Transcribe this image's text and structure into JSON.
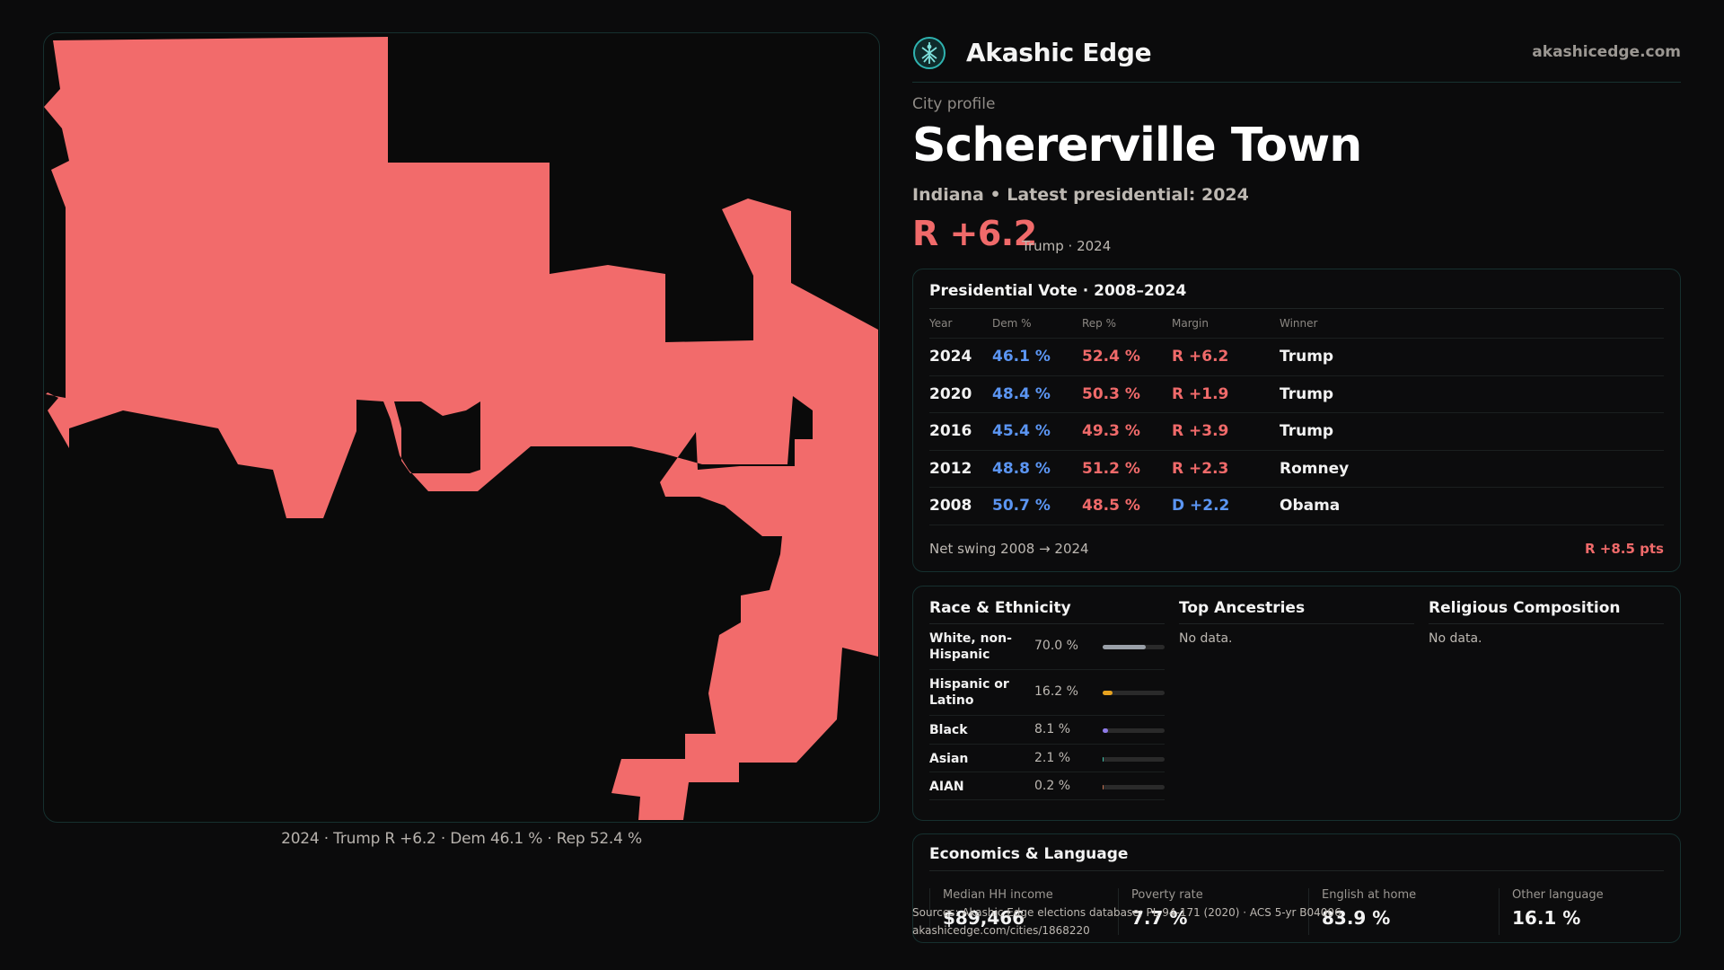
{
  "brand": {
    "name": "Akashic Edge",
    "url": "akashicedge.com"
  },
  "profile": {
    "kicker": "City profile",
    "city": "Schererville Town",
    "subtitle": "Indiana • Latest presidential: 2024",
    "margin": "R +6.2",
    "margin_sub": "Trump · 2024"
  },
  "map": {
    "caption": "2024 · Trump R +6.2 · Dem 46.1 % · Rep 52.4 %",
    "fill_color": "#f26b6b"
  },
  "presidential": {
    "title": "Presidential Vote · 2008–2024",
    "headers": {
      "year": "Year",
      "dem": "Dem %",
      "rep": "Rep %",
      "margin": "Margin",
      "winner": "Winner"
    },
    "rows": [
      {
        "year": "2024",
        "dem": "46.1 %",
        "rep": "52.4 %",
        "margin": "R +6.2",
        "party": "R",
        "winner": "Trump"
      },
      {
        "year": "2020",
        "dem": "48.4 %",
        "rep": "50.3 %",
        "margin": "R +1.9",
        "party": "R",
        "winner": "Trump"
      },
      {
        "year": "2016",
        "dem": "45.4 %",
        "rep": "49.3 %",
        "margin": "R +3.9",
        "party": "R",
        "winner": "Trump"
      },
      {
        "year": "2012",
        "dem": "48.8 %",
        "rep": "51.2 %",
        "margin": "R +2.3",
        "party": "R",
        "winner": "Romney"
      },
      {
        "year": "2008",
        "dem": "50.7 %",
        "rep": "48.5 %",
        "margin": "D +2.2",
        "party": "D",
        "winner": "Obama"
      }
    ],
    "swing_label": "Net swing 2008 → 2024",
    "swing_value": "R +8.5 pts"
  },
  "race": {
    "title": "Race & Ethnicity",
    "rows": [
      {
        "label": "White, non-Hispanic",
        "pct": "70.0 %",
        "value": 0.7,
        "color": "#9aa0a8"
      },
      {
        "label": "Hispanic or Latino",
        "pct": "16.2 %",
        "value": 0.162,
        "color": "#e6a21f"
      },
      {
        "label": "Black",
        "pct": "8.1 %",
        "value": 0.081,
        "color": "#8f7be8"
      },
      {
        "label": "Asian",
        "pct": "2.1 %",
        "value": 0.021,
        "color": "#3fbfa8"
      },
      {
        "label": "AIAN",
        "pct": "0.2 %",
        "value": 0.002,
        "color": "#c07050"
      }
    ]
  },
  "ancestries": {
    "title": "Top Ancestries",
    "nodata": "No data."
  },
  "religion": {
    "title": "Religious Composition",
    "nodata": "No data."
  },
  "economics": {
    "title": "Economics & Language",
    "items": [
      {
        "label": "Median HH income",
        "value": "$89,466"
      },
      {
        "label": "Poverty rate",
        "value": "7.7 %"
      },
      {
        "label": "English at home",
        "value": "83.9 %"
      },
      {
        "label": "Other language",
        "value": "16.1 %"
      }
    ]
  },
  "sources": {
    "line1": "Sources: Akashic Edge elections database; PL 94-171 (2020) · ACS 5-yr B04006",
    "line2": "akashicedge.com/cities/1868220"
  }
}
